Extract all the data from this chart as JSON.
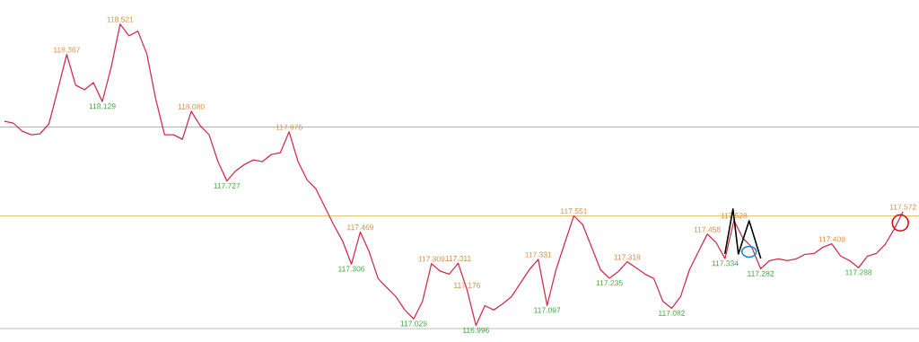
{
  "chart_data": {
    "type": "line",
    "categories": [
      null,
      null,
      null,
      null,
      null,
      null,
      null,
      null,
      null,
      null,
      null,
      null,
      null,
      null,
      null,
      null,
      null,
      null,
      null,
      null,
      null,
      null,
      null,
      null,
      null,
      null,
      null,
      null,
      null,
      null,
      null,
      null,
      null,
      null,
      null,
      null,
      null,
      null,
      null,
      null,
      null,
      null,
      null,
      null,
      null,
      null,
      null,
      null,
      null,
      null,
      null,
      null,
      null,
      null,
      null,
      null,
      null,
      null,
      null,
      null,
      null,
      null,
      null,
      null,
      null,
      null,
      null,
      null,
      null,
      null,
      null,
      null,
      null,
      null,
      null,
      null,
      null,
      null,
      null,
      null,
      null,
      null,
      null,
      null,
      null,
      null,
      null,
      null,
      null,
      null,
      null,
      null,
      null,
      null,
      null,
      null,
      null,
      null,
      null,
      null,
      null,
      null
    ],
    "values": [
      118.029,
      118.02,
      117.979,
      117.961,
      117.966,
      118.016,
      118.189,
      118.367,
      118.212,
      118.189,
      118.225,
      118.129,
      118.303,
      118.521,
      118.462,
      118.485,
      118.371,
      118.143,
      117.961,
      117.961,
      117.938,
      118.08,
      118.007,
      117.961,
      117.825,
      117.727,
      117.779,
      117.811,
      117.834,
      117.825,
      117.861,
      117.87,
      117.976,
      117.825,
      117.734,
      117.688,
      117.597,
      117.506,
      117.424,
      117.306,
      117.469,
      117.369,
      117.233,
      117.187,
      117.142,
      117.074,
      117.029,
      117.119,
      117.309,
      117.27,
      117.256,
      117.311,
      117.176,
      116.996,
      117.096,
      117.074,
      117.105,
      117.142,
      117.21,
      117.278,
      117.331,
      117.097,
      117.278,
      117.415,
      117.551,
      117.506,
      117.392,
      117.278,
      117.235,
      117.269,
      117.318,
      117.288,
      117.256,
      117.233,
      117.119,
      117.082,
      117.142,
      117.278,
      117.369,
      117.458,
      117.415,
      117.334,
      117.528,
      117.438,
      117.392,
      117.282,
      117.324,
      117.333,
      117.324,
      117.333,
      117.356,
      117.36,
      117.392,
      117.409,
      117.347,
      117.324,
      117.288,
      117.347,
      117.36,
      117.406,
      117.483,
      117.572
    ],
    "value_labels": [
      null,
      null,
      null,
      null,
      null,
      null,
      null,
      "118.367",
      null,
      null,
      null,
      "118.129",
      null,
      "118.521",
      null,
      null,
      null,
      null,
      null,
      null,
      null,
      "118.080",
      null,
      null,
      null,
      "117.727",
      null,
      null,
      null,
      null,
      null,
      null,
      "117.976",
      null,
      null,
      null,
      null,
      null,
      null,
      "117.306",
      "117.469",
      null,
      null,
      null,
      null,
      null,
      "117.029",
      null,
      "117.309",
      null,
      null,
      "117.311",
      "117.176",
      "116.996",
      null,
      null,
      null,
      null,
      null,
      null,
      "117.331",
      "117.097",
      null,
      null,
      "117.551",
      null,
      null,
      null,
      "117.235",
      null,
      "117.318",
      null,
      null,
      null,
      null,
      "117.082",
      null,
      null,
      null,
      "117.458",
      null,
      "117.334",
      "117.528",
      null,
      null,
      "117.282",
      null,
      null,
      null,
      null,
      null,
      null,
      null,
      "117.409",
      null,
      null,
      "117.288",
      null,
      null,
      null,
      null,
      "117.572"
    ],
    "color": "#d0304f",
    "ref_lines": [
      {
        "axis": "y",
        "value": 118.0,
        "color": "#999999"
      },
      {
        "axis": "y",
        "value": 117.55,
        "color": "#e0b040"
      },
      {
        "axis": "y",
        "value": 116.98,
        "color": "#aaaaaa"
      }
    ]
  }
}
